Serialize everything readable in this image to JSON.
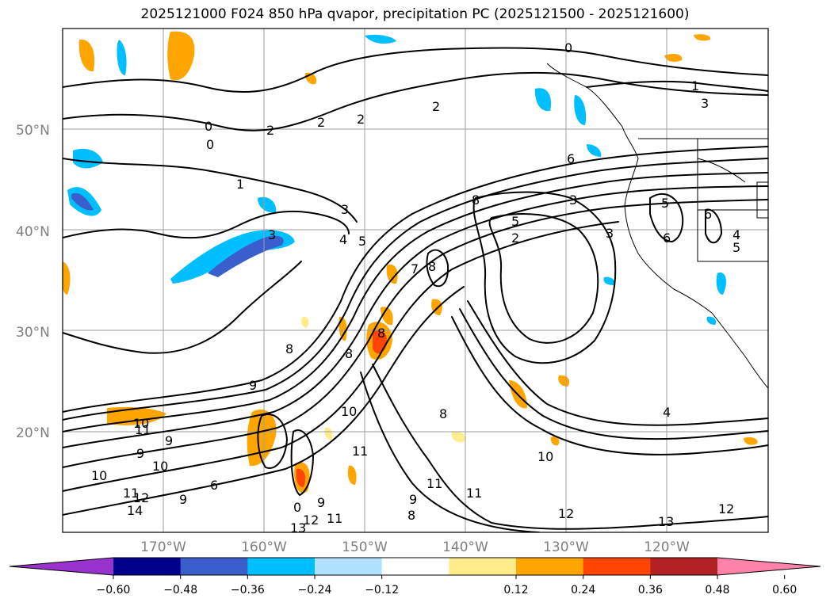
{
  "title": "2025121000 F024 850 hPa qvapor, precipitation PC (2025121500 - 2025121600)",
  "map": {
    "lat_labels": [
      "50°N",
      "40°N",
      "30°N",
      "20°N"
    ],
    "lon_labels": [
      "170°W",
      "160°W",
      "150°W",
      "140°W",
      "130°W",
      "120°W"
    ],
    "contour_label_values": [
      "0",
      "1",
      "2",
      "3",
      "4",
      "5",
      "6",
      "7",
      "8",
      "9",
      "10",
      "11",
      "12",
      "13",
      "14"
    ]
  },
  "colorbar": {
    "ticks": [
      "−0.60",
      "−0.48",
      "−0.36",
      "−0.24",
      "−0.12",
      "0.12",
      "0.24",
      "0.36",
      "0.48",
      "0.60"
    ],
    "colors": [
      "#9a32cd",
      "#00008b",
      "#3a5fcd",
      "#00bfff",
      "#b0e2ff",
      "#ffffff",
      "#ffec8b",
      "#ffa500",
      "#ff4500",
      "#b22222",
      "#ff83a8"
    ],
    "extend": "both"
  },
  "legend_colors": {
    "neg_strong": "#3a5fcd",
    "neg_mid": "#00bfff",
    "neg_light": "#b0e2ff",
    "pos_light": "#ffec8b",
    "pos_mid": "#ffa500",
    "pos_strong": "#ff4500"
  }
}
